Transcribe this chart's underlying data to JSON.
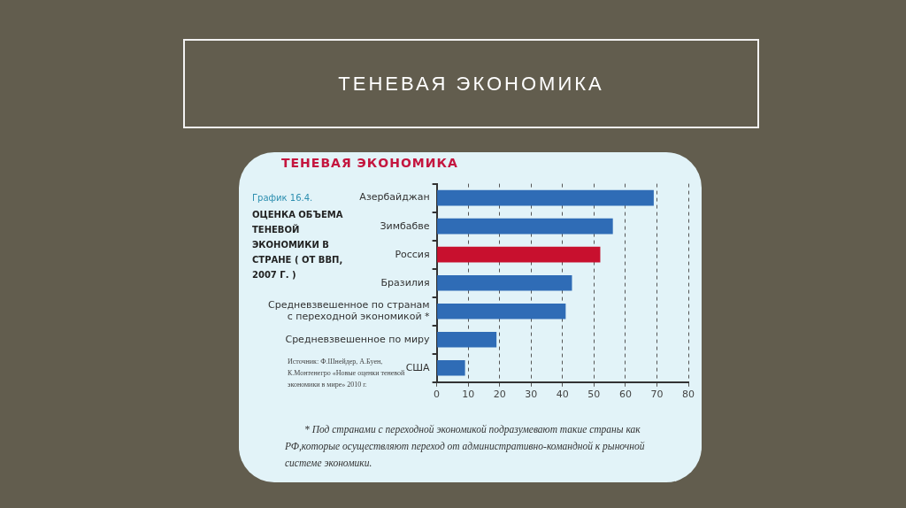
{
  "chart_data": {
    "type": "bar",
    "orientation": "horizontal",
    "title": "ТЕНЕВАЯ ЭКОНОМИКА",
    "subtitle": "ТЕНЕВАЯ ЭКОНОМИКА",
    "categories": [
      "Азербайджан",
      "Зимбабве",
      "Россия",
      "Бразилия",
      "Средневзвешенное по странам с переходной экономикой *",
      "Средневзвешенное по миру",
      "США"
    ],
    "values": [
      69,
      56,
      52,
      43,
      41,
      19,
      9
    ],
    "colors": [
      "#2f6cb6",
      "#2f6cb6",
      "#c8102e",
      "#2f6cb6",
      "#2f6cb6",
      "#2f6cb6",
      "#2f6cb6"
    ],
    "xlim": [
      0,
      80
    ],
    "xticks": [
      0,
      10,
      20,
      30,
      40,
      50,
      60,
      70,
      80
    ],
    "grid": "x",
    "annotations": [
      "График 16.4.",
      "ОЦЕНКА ОБЪЕМА ТЕНЕВОЙ ЭКОНОМИКИ В СТРАНЕ ( ОТ ВВП, 2007 Г. )",
      "Источник: Ф.Шнейдер, А.Буен, К.Монтенегро «Новые оценки теневой экономики в мире» 2010 г.",
      "* Под странами с переходной экономикой подразумевают такие страны как РФ,которые осуществляют переход от административно-командной к рыночной системе экономики."
    ]
  }
}
